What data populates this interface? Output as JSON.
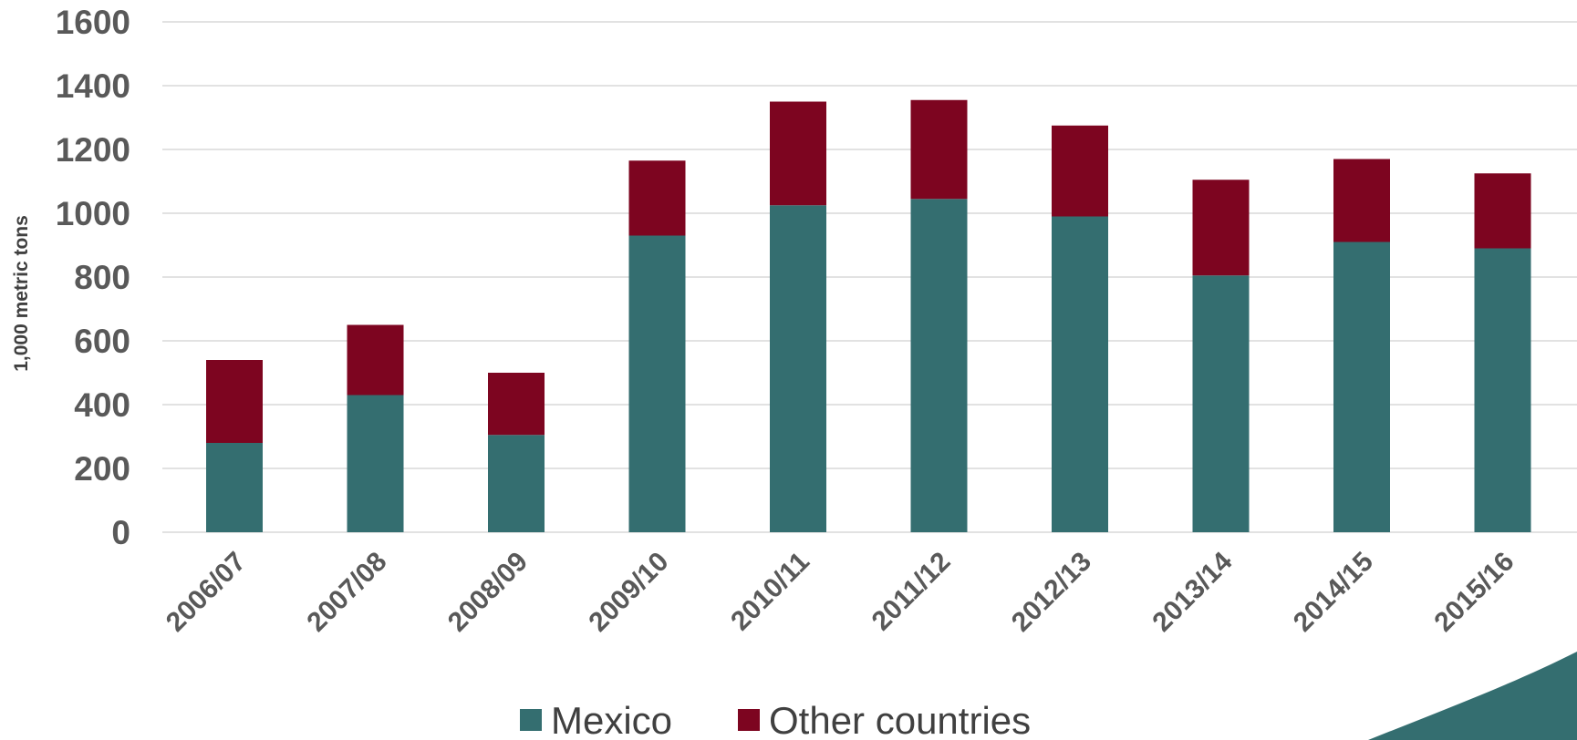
{
  "chart_data": {
    "type": "bar",
    "stacked": true,
    "categories": [
      "2006/07",
      "2007/08",
      "2008/09",
      "2009/10",
      "2010/11",
      "2011/12",
      "2012/13",
      "2013/14",
      "2014/15",
      "2015/16"
    ],
    "series": [
      {
        "name": "Mexico",
        "color": "#346E70",
        "values": [
          280,
          430,
          305,
          930,
          1025,
          1045,
          990,
          805,
          910,
          890
        ]
      },
      {
        "name": "Other countries",
        "color": "#7D0520",
        "values": [
          260,
          220,
          195,
          235,
          325,
          310,
          285,
          300,
          260,
          235
        ]
      }
    ],
    "ylabel": "1,000 metric tons",
    "xlabel": "",
    "ylim": [
      0,
      1600
    ],
    "yticks": [
      0,
      200,
      400,
      600,
      800,
      1000,
      1200,
      1400,
      1600
    ],
    "grid": true,
    "legend_position": "bottom"
  },
  "decoration": {
    "corner_swoosh_color": "#346E70"
  }
}
